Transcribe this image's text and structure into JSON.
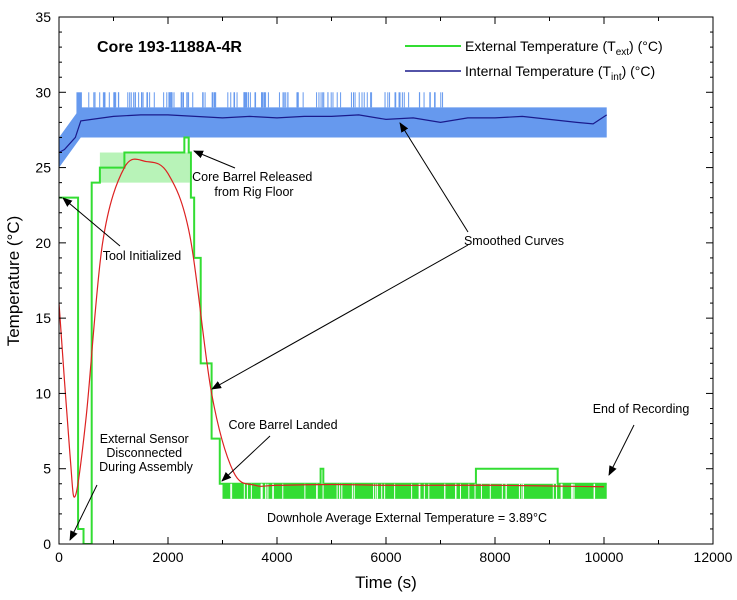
{
  "chart_data": {
    "type": "line",
    "title": "Core 193-1188A-4R",
    "xlabel": "Time (s)",
    "ylabel": "Temperature (°C)",
    "xlim": [
      0,
      12000
    ],
    "ylim": [
      0,
      35
    ],
    "xticks": [
      0,
      2000,
      4000,
      6000,
      8000,
      10000,
      12000
    ],
    "yticks": [
      0,
      5,
      10,
      15,
      20,
      25,
      30,
      35
    ],
    "grid": false,
    "legend": {
      "placement": "top-right",
      "entries": [
        {
          "pre": "External Temperature (T",
          "sub": "ext",
          "post": ") (°C)",
          "color": "#33dd33"
        },
        {
          "pre": "Internal Temperature (T",
          "sub": "int",
          "post": ") (°C)",
          "color": "#1a1a8c"
        }
      ]
    },
    "colors": {
      "external": "#33dd33",
      "internal_band": "#6699ee",
      "internal_line": "#1a1a8c",
      "smoothed": "#dd2222"
    },
    "series": [
      {
        "name": "External Temperature (Text) (°C)",
        "style": "step",
        "x": [
          0,
          300,
          350,
          450,
          560,
          600,
          650,
          750,
          1000,
          1200,
          1500,
          1800,
          2300,
          2380,
          2420,
          2480,
          2600,
          2800,
          2950,
          3000,
          4700,
          4800,
          4850,
          7600,
          7650,
          9150,
          10050
        ],
        "y": [
          23.0,
          23.0,
          1.0,
          0.0,
          0.0,
          24.0,
          24.0,
          25.0,
          25.0,
          26.0,
          26.0,
          26.0,
          27.0,
          26.0,
          23.0,
          19.0,
          12.0,
          7.0,
          4.0,
          4.0,
          4.0,
          5.0,
          4.0,
          4.0,
          5.0,
          4.0,
          4.0
        ]
      },
      {
        "name": "Internal Temperature (Tint) (°C)",
        "band": {
          "x": [
            0,
            400,
            10050
          ],
          "low": [
            25.0,
            27.0,
            27.0
          ],
          "high": [
            27.0,
            29.0,
            29.0
          ]
        },
        "x": [
          0,
          100,
          300,
          400,
          600,
          1000,
          1500,
          2000,
          2500,
          3000,
          3500,
          4000,
          4500,
          5000,
          5500,
          6000,
          6500,
          7000,
          7500,
          8000,
          8500,
          9000,
          9500,
          9800,
          10050
        ],
        "y": [
          26.0,
          26.2,
          27.0,
          28.1,
          28.2,
          28.4,
          28.5,
          28.5,
          28.4,
          28.3,
          28.4,
          28.3,
          28.4,
          28.4,
          28.5,
          28.2,
          28.3,
          28.0,
          28.3,
          28.3,
          28.4,
          28.2,
          28.0,
          27.9,
          28.5
        ]
      },
      {
        "name": "Smoothed Curves",
        "x": [
          0,
          200,
          300,
          500,
          800,
          1200,
          1600,
          2000,
          2400,
          2800,
          3200,
          3600,
          4000,
          5000,
          6000,
          7000,
          8000,
          9000,
          10000
        ],
        "y": [
          16.0,
          6.0,
          3.2,
          8.5,
          20.0,
          25.0,
          25.4,
          24.6,
          20.5,
          10.0,
          4.8,
          3.9,
          3.9,
          3.95,
          3.9,
          3.9,
          3.9,
          3.85,
          3.8
        ]
      }
    ],
    "annotations": [
      {
        "lines": [
          "Core Barrel Released",
          "from Rig Floor"
        ]
      },
      {
        "lines": [
          "Tool Initialized"
        ]
      },
      {
        "lines": [
          "Smoothed Curves"
        ]
      },
      {
        "lines": [
          "Core Barrel Landed"
        ]
      },
      {
        "lines": [
          "End of Recording"
        ]
      },
      {
        "lines": [
          "External Sensor",
          "Disconnected",
          "During Assembly"
        ]
      },
      {
        "lines": [
          "Downhole Average External Temperature = 3.89°C"
        ]
      }
    ]
  }
}
